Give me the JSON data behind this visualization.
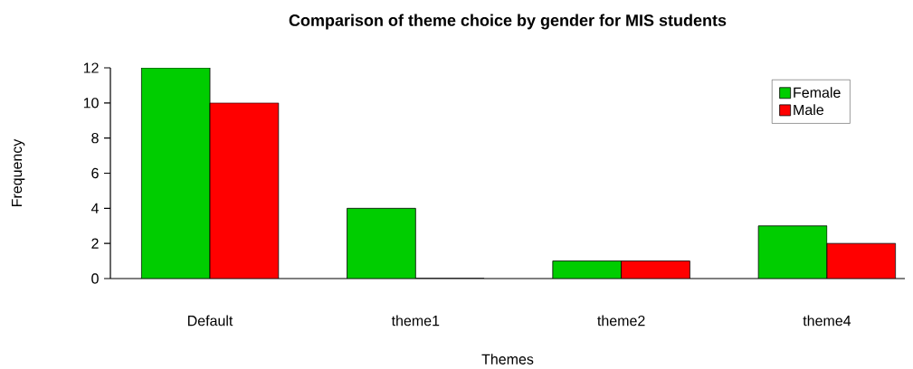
{
  "chart_data": {
    "type": "bar",
    "title": "Comparison of theme choice by gender for MIS students",
    "xlabel": "Themes",
    "ylabel": "Frequency",
    "categories": [
      "Default",
      "theme1",
      "theme2",
      "theme4"
    ],
    "series": [
      {
        "name": "Female",
        "color": "#00cd00",
        "values": [
          12,
          4,
          1,
          3
        ]
      },
      {
        "name": "Male",
        "color": "#ff0000",
        "values": [
          10,
          0,
          1,
          2
        ]
      }
    ],
    "ylim": [
      0,
      12
    ],
    "yticks": [
      0,
      2,
      4,
      6,
      8,
      10,
      12
    ],
    "legend": "top right"
  }
}
